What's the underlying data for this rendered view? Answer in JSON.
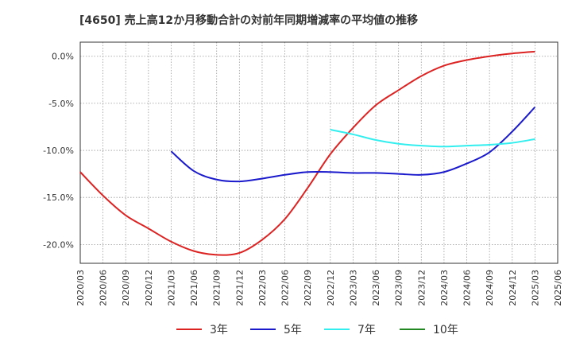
{
  "chart_data": {
    "type": "line",
    "title": "[4650]  売上高12か月移動合計の対前年同期増減率の平均値の推移",
    "xlabel": "",
    "ylabel": "",
    "x_tick_labels": [
      "2020/03",
      "2020/06",
      "2020/09",
      "2020/12",
      "2021/03",
      "2021/06",
      "2021/09",
      "2021/12",
      "2022/03",
      "2022/06",
      "2022/09",
      "2022/12",
      "2023/03",
      "2023/06",
      "2023/09",
      "2023/12",
      "2024/03",
      "2024/06",
      "2024/09",
      "2024/12",
      "2025/03",
      "2025/06"
    ],
    "y_ticks": [
      0,
      -5,
      -10,
      -15,
      -20
    ],
    "y_tick_labels": [
      "0.0%",
      "-5.0%",
      "-10.0%",
      "-15.0%",
      "-20.0%"
    ],
    "ylim": [
      -22,
      1.5
    ],
    "grid": true,
    "legend_position": "bottom",
    "series": [
      {
        "name": "3年",
        "color": "#dd2222",
        "x": [
          "2020/03",
          "2020/06",
          "2020/09",
          "2020/12",
          "2021/03",
          "2021/06",
          "2021/09",
          "2021/12",
          "2022/03",
          "2022/06",
          "2022/09",
          "2022/12",
          "2023/03",
          "2023/06",
          "2023/09",
          "2023/12",
          "2024/03",
          "2024/06",
          "2024/09",
          "2024/12",
          "2025/03"
        ],
        "values": [
          -12.3,
          -14.8,
          -16.9,
          -18.3,
          -19.7,
          -20.7,
          -21.1,
          -20.9,
          -19.5,
          -17.3,
          -14.0,
          -10.4,
          -7.6,
          -5.2,
          -3.6,
          -2.1,
          -1.0,
          -0.4,
          0.0,
          0.3,
          0.5
        ]
      },
      {
        "name": "5年",
        "color": "#1a1acc",
        "x": [
          "2021/03",
          "2021/06",
          "2021/09",
          "2021/12",
          "2022/03",
          "2022/06",
          "2022/09",
          "2022/12",
          "2023/03",
          "2023/06",
          "2023/09",
          "2023/12",
          "2024/03",
          "2024/06",
          "2024/09",
          "2024/12",
          "2025/03"
        ],
        "values": [
          -10.1,
          -12.2,
          -13.1,
          -13.3,
          -13.0,
          -12.6,
          -12.3,
          -12.3,
          -12.4,
          -12.4,
          -12.5,
          -12.6,
          -12.3,
          -11.4,
          -10.2,
          -8.0,
          -5.4
        ]
      },
      {
        "name": "7年",
        "color": "#33eeee",
        "x": [
          "2022/12",
          "2023/03",
          "2023/06",
          "2023/09",
          "2023/12",
          "2024/03",
          "2024/06",
          "2024/09",
          "2024/12",
          "2025/03"
        ],
        "values": [
          -7.8,
          -8.3,
          -8.9,
          -9.3,
          -9.5,
          -9.6,
          -9.5,
          -9.4,
          -9.2,
          -8.8
        ]
      },
      {
        "name": "10年",
        "color": "#228822",
        "x": [],
        "values": []
      }
    ]
  }
}
